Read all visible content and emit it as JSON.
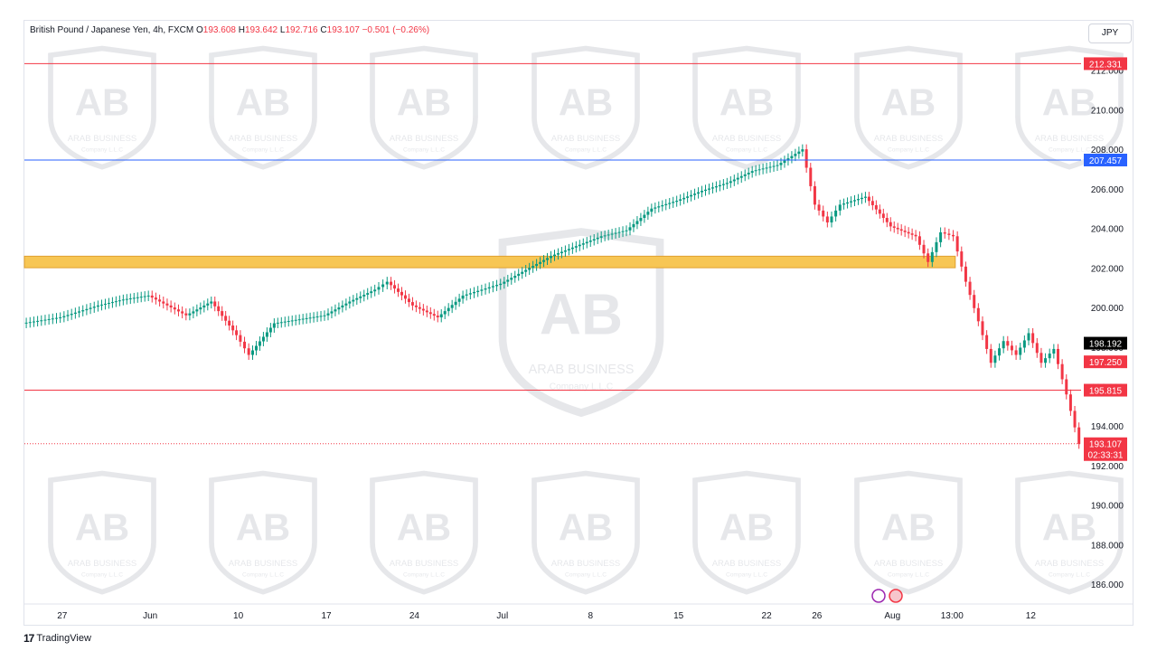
{
  "legend": {
    "symbol": "British Pound / Japanese Yen, 4h, FXCM",
    "open_label": "O",
    "open": "193.608",
    "high_label": "H",
    "high": "193.642",
    "low_label": "L",
    "low": "192.716",
    "close_label": "C",
    "close": "193.107",
    "change": "−0.501 (−0.26%)"
  },
  "currency_button": "JPY",
  "footer": {
    "brand": "TradingView"
  },
  "watermark": {
    "text": "ARAB BUSINESS",
    "sub": "Company L.L.C",
    "mark": "AB"
  },
  "chart_data": {
    "type": "candlestick",
    "title": "British Pound / Japanese Yen, 4h, FXCM",
    "ylim": [
      185.0,
      214.5
    ],
    "y_ticks": [
      186,
      188,
      190,
      192,
      194,
      196,
      198,
      200,
      202,
      204,
      206,
      208,
      210,
      212
    ],
    "x_ticks": [
      "27",
      "Jun",
      "10",
      "17",
      "24",
      "Jul",
      "8",
      "15",
      "22",
      "26",
      "Aug",
      "13:00",
      "12"
    ],
    "x_tick_dates": [
      "2024-05-27",
      "2024-06-03",
      "2024-06-10",
      "2024-06-17",
      "2024-06-24",
      "2024-07-01",
      "2024-07-08",
      "2024-07-15",
      "2024-07-22",
      "2024-07-26",
      "2024-08-01",
      "2024-08-01",
      "2024-08-12"
    ],
    "x_range": [
      "2024-05-24",
      "2024-08-16"
    ],
    "price_path": [
      {
        "x": "2024-05-24",
        "y": 199.2
      },
      {
        "x": "2024-05-27",
        "y": 199.5
      },
      {
        "x": "2024-05-30",
        "y": 200.1
      },
      {
        "x": "2024-06-01",
        "y": 200.4
      },
      {
        "x": "2024-06-03",
        "y": 200.6
      },
      {
        "x": "2024-06-06",
        "y": 199.6
      },
      {
        "x": "2024-06-08",
        "y": 200.3
      },
      {
        "x": "2024-06-10",
        "y": 198.6
      },
      {
        "x": "2024-06-11",
        "y": 197.6
      },
      {
        "x": "2024-06-13",
        "y": 199.2
      },
      {
        "x": "2024-06-15",
        "y": 199.4
      },
      {
        "x": "2024-06-17",
        "y": 199.6
      },
      {
        "x": "2024-06-19",
        "y": 200.3
      },
      {
        "x": "2024-06-21",
        "y": 200.9
      },
      {
        "x": "2024-06-22",
        "y": 201.3
      },
      {
        "x": "2024-06-24",
        "y": 200.1
      },
      {
        "x": "2024-06-26",
        "y": 199.5
      },
      {
        "x": "2024-06-28",
        "y": 200.6
      },
      {
        "x": "2024-07-01",
        "y": 201.2
      },
      {
        "x": "2024-07-03",
        "y": 201.9
      },
      {
        "x": "2024-07-05",
        "y": 202.6
      },
      {
        "x": "2024-07-07",
        "y": 203.1
      },
      {
        "x": "2024-07-09",
        "y": 203.6
      },
      {
        "x": "2024-07-11",
        "y": 203.9
      },
      {
        "x": "2024-07-13",
        "y": 205.0
      },
      {
        "x": "2024-07-15",
        "y": 205.4
      },
      {
        "x": "2024-07-17",
        "y": 205.9
      },
      {
        "x": "2024-07-19",
        "y": 206.3
      },
      {
        "x": "2024-07-21",
        "y": 206.9
      },
      {
        "x": "2024-07-23",
        "y": 207.2
      },
      {
        "x": "2024-07-25",
        "y": 208.0
      },
      {
        "x": "2024-07-26",
        "y": 205.2
      },
      {
        "x": "2024-07-27",
        "y": 204.3
      },
      {
        "x": "2024-07-28",
        "y": 205.2
      },
      {
        "x": "2024-07-30",
        "y": 205.6
      },
      {
        "x": "2024-08-01",
        "y": 204.1
      },
      {
        "x": "2024-08-03",
        "y": 203.6
      },
      {
        "x": "2024-08-04",
        "y": 202.3
      },
      {
        "x": "2024-08-05",
        "y": 203.8
      },
      {
        "x": "2024-08-06",
        "y": 203.6
      },
      {
        "x": "2024-08-07",
        "y": 201.3
      },
      {
        "x": "2024-08-08",
        "y": 199.3
      },
      {
        "x": "2024-08-09",
        "y": 197.2
      },
      {
        "x": "2024-08-10",
        "y": 198.3
      },
      {
        "x": "2024-08-11",
        "y": 197.6
      },
      {
        "x": "2024-08-12",
        "y": 198.7
      },
      {
        "x": "2024-08-13",
        "y": 197.2
      },
      {
        "x": "2024-08-14",
        "y": 197.9
      },
      {
        "x": "2024-08-15",
        "y": 195.6
      },
      {
        "x": "2024-08-16",
        "y": 193.1
      }
    ],
    "horizontal_lines": [
      {
        "value": 212.331,
        "label": "212.331",
        "color": "#f23645"
      },
      {
        "value": 207.457,
        "label": "207.457",
        "color": "#2962ff"
      },
      {
        "value": 195.815,
        "label": "195.815",
        "color": "#f23645"
      }
    ],
    "price_labels": [
      {
        "value": 198.192,
        "label": "198.192",
        "color": "#000000"
      },
      {
        "value": 197.25,
        "label": "197.250",
        "color": "#f23645"
      },
      {
        "value": 193.107,
        "label": "193.107",
        "sub": "02:33:31",
        "color": "#f23645"
      }
    ],
    "zone": {
      "from": 202.1,
      "to": 202.5,
      "color": "#f7c654",
      "x_start": "2024-05-24",
      "x_end": "2024-08-06"
    },
    "colors": {
      "up": "#089981",
      "down": "#f23645",
      "axis_text": "#131722"
    }
  }
}
